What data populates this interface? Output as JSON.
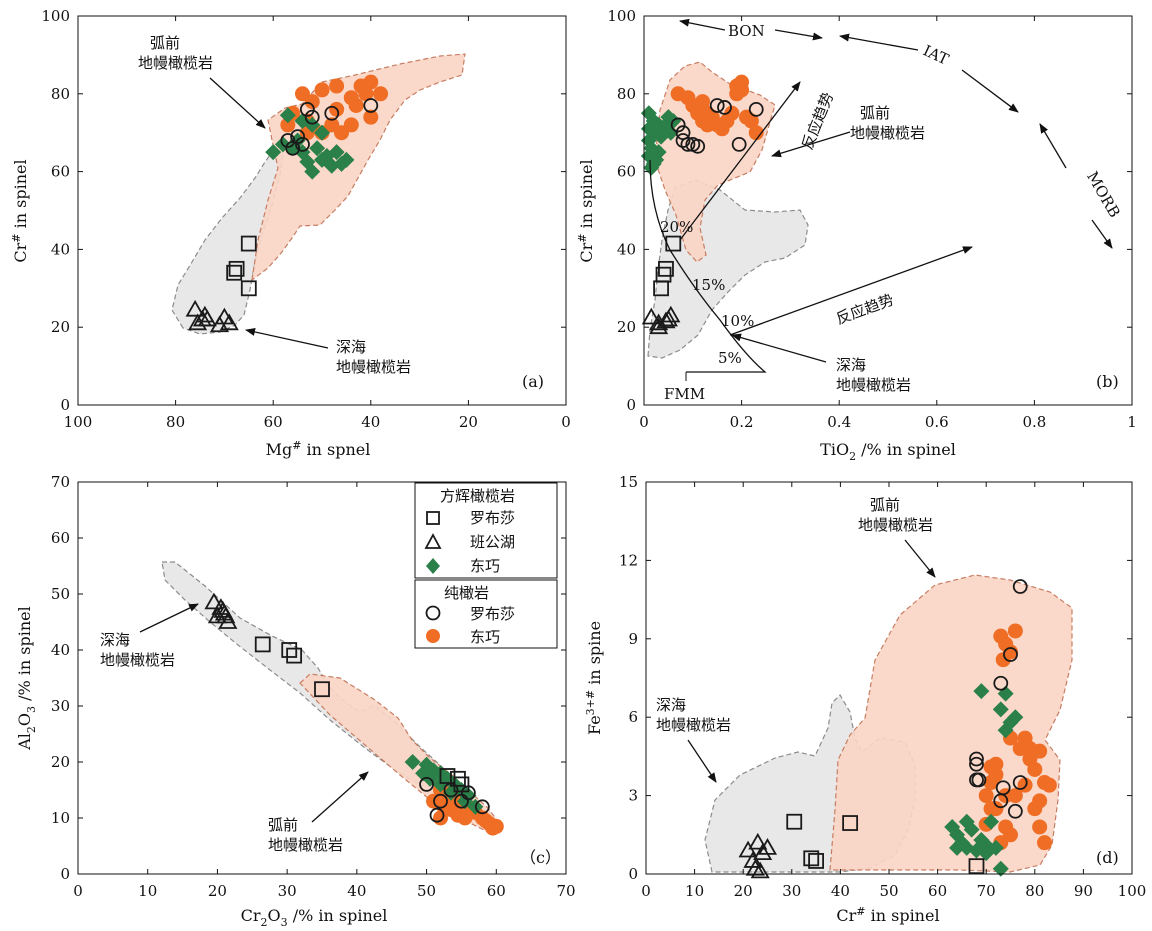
{
  "colors": {
    "open_marker": "#1a1a1a",
    "green": "#2a8048",
    "orange": "#ef6d24",
    "forearc_fill": "#f9d5c5",
    "forearc_stroke": "#c87d62",
    "abyssal_fill": "#e6e6e6",
    "abyssal_stroke": "#8c8c8c"
  },
  "legend": {
    "group1_title": "方辉橄榄岩",
    "group1_items": [
      "罗布莎",
      "班公湖",
      "东巧"
    ],
    "group2_title": "纯橄岩",
    "group2_items": [
      "罗布莎",
      "东巧"
    ]
  },
  "chart_data": [
    {
      "panel": "(a)",
      "type": "scatter",
      "xlabel_main": "Mg",
      "xlabel_sup": "#",
      "xlabel_rest": " in spnel",
      "ylabel_main": "Cr",
      "ylabel_sup": "#",
      "ylabel_rest": " in spinel",
      "xlim": [
        100,
        0
      ],
      "ylim": [
        0,
        100
      ],
      "xticks": [
        100,
        80,
        60,
        40,
        20,
        0
      ],
      "yticks": [
        0,
        20,
        40,
        60,
        80,
        100
      ],
      "annotations": {
        "forearc_line1": "弧前",
        "forearc_line2": "地幔橄榄岩",
        "abyssal_line1": "深海",
        "abyssal_line2": "地幔橄榄岩"
      },
      "series": {
        "harz_luobusha": [
          [
            65,
            41.5
          ],
          [
            67.5,
            35
          ],
          [
            68,
            34
          ],
          [
            65,
            30
          ]
        ],
        "harz_bangonghu": [
          [
            76,
            24.5
          ],
          [
            75.5,
            21
          ],
          [
            74,
            23
          ],
          [
            73.5,
            22
          ],
          [
            70,
            22.5
          ],
          [
            69,
            21
          ],
          [
            71,
            20.5
          ],
          [
            74.5,
            22
          ]
        ],
        "harz_dongqiao": [
          [
            57,
            74.5
          ],
          [
            54,
            73
          ],
          [
            52,
            72
          ],
          [
            50,
            70
          ],
          [
            55,
            68
          ],
          [
            51,
            66
          ],
          [
            49,
            64
          ],
          [
            47,
            65
          ],
          [
            45,
            63
          ],
          [
            53,
            62.5
          ],
          [
            50,
            63
          ],
          [
            56,
            66
          ],
          [
            58,
            67
          ],
          [
            48,
            61.5
          ],
          [
            46,
            62
          ],
          [
            54,
            65
          ],
          [
            60,
            65
          ],
          [
            52,
            60
          ]
        ],
        "dun_luobusha": [
          [
            57,
            68
          ],
          [
            56,
            66
          ],
          [
            54,
            67
          ],
          [
            52,
            74
          ],
          [
            48,
            75
          ],
          [
            53,
            76
          ],
          [
            40,
            77
          ],
          [
            55,
            69
          ]
        ],
        "dun_dongqiao": [
          [
            56,
            75
          ],
          [
            53,
            73
          ],
          [
            50,
            70
          ],
          [
            48,
            72
          ],
          [
            47,
            76
          ],
          [
            44,
            79
          ],
          [
            42,
            82
          ],
          [
            40,
            83
          ],
          [
            38,
            80
          ],
          [
            40,
            74
          ],
          [
            44,
            72
          ],
          [
            46,
            70
          ],
          [
            52,
            78
          ],
          [
            54,
            80
          ],
          [
            47,
            82
          ],
          [
            50,
            81
          ],
          [
            57,
            72
          ],
          [
            53,
            70
          ],
          [
            41,
            80
          ],
          [
            43,
            77
          ]
        ]
      }
    },
    {
      "panel": "(b)",
      "type": "scatter",
      "xlabel_main": "TiO",
      "xlabel_sub": "2",
      "xlabel_rest": " /%  in spinel",
      "ylabel_main": "Cr",
      "ylabel_sup": "#",
      "ylabel_rest": " in spinel",
      "xlim": [
        0,
        1
      ],
      "ylim": [
        0,
        100
      ],
      "xticks": [
        0,
        0.2,
        0.4,
        0.6,
        0.8,
        1
      ],
      "yticks": [
        0,
        20,
        40,
        60,
        80,
        100
      ],
      "annotations": {
        "bon": "BON",
        "iat": "IAT",
        "morb": "MORB",
        "fmm": "FMM",
        "trend1": "反应趋势",
        "trend2": "反应趋势",
        "forearc_line1": "弧前",
        "forearc_line2": "地幔橄榄岩",
        "abyssal_line1": "深海",
        "abyssal_line2": "地幔橄榄岩",
        "melt20": "20%",
        "melt15": "15%",
        "melt10": "10%",
        "melt5": "5%"
      },
      "series": {
        "harz_luobusha": [
          [
            0.06,
            41.5
          ],
          [
            0.045,
            35
          ],
          [
            0.04,
            33.5
          ],
          [
            0.035,
            30
          ]
        ],
        "harz_bangonghu": [
          [
            0.015,
            22.5
          ],
          [
            0.03,
            21
          ],
          [
            0.03,
            20
          ],
          [
            0.05,
            22
          ],
          [
            0.055,
            23
          ],
          [
            0.045,
            21.5
          ]
        ],
        "harz_dongqiao": [
          [
            0.01,
            75
          ],
          [
            0.02,
            73
          ],
          [
            0.03,
            72
          ],
          [
            0.02,
            70
          ],
          [
            0.01,
            68
          ],
          [
            0.015,
            66
          ],
          [
            0.01,
            64
          ],
          [
            0.02,
            62
          ],
          [
            0.03,
            65
          ],
          [
            0.025,
            63
          ],
          [
            0.04,
            71
          ],
          [
            0.05,
            74
          ],
          [
            0.06,
            73
          ],
          [
            0.01,
            71
          ],
          [
            0.035,
            69
          ],
          [
            0.015,
            61
          ],
          [
            0.045,
            72
          ],
          [
            0.055,
            70
          ]
        ],
        "dun_luobusha": [
          [
            0.07,
            72
          ],
          [
            0.08,
            70
          ],
          [
            0.09,
            67
          ],
          [
            0.1,
            67
          ],
          [
            0.11,
            66.5
          ],
          [
            0.15,
            77
          ],
          [
            0.165,
            76.5
          ],
          [
            0.23,
            76
          ],
          [
            0.195,
            67
          ],
          [
            0.08,
            68
          ]
        ],
        "dun_dongqiao": [
          [
            0.07,
            80
          ],
          [
            0.09,
            79
          ],
          [
            0.1,
            77
          ],
          [
            0.11,
            75
          ],
          [
            0.12,
            73
          ],
          [
            0.13,
            72
          ],
          [
            0.14,
            74
          ],
          [
            0.16,
            71
          ],
          [
            0.18,
            75
          ],
          [
            0.19,
            80
          ],
          [
            0.2,
            83
          ],
          [
            0.19,
            82
          ],
          [
            0.2,
            81
          ],
          [
            0.21,
            74
          ],
          [
            0.22,
            73
          ],
          [
            0.23,
            70
          ],
          [
            0.12,
            78
          ],
          [
            0.15,
            72
          ],
          [
            0.17,
            73
          ],
          [
            0.13,
            75
          ]
        ]
      }
    },
    {
      "panel": "（c）",
      "type": "scatter",
      "xlabel_main": "Cr",
      "xlabel_sub": "2",
      "xlabel_mid": "O",
      "xlabel_sub2": "3",
      "xlabel_rest": " /%  in spinel",
      "ylabel_main": "Al",
      "ylabel_sub": "2",
      "ylabel_mid": "O",
      "ylabel_sub2": "3",
      "ylabel_rest": " /%  in spinel",
      "xlim": [
        0,
        70
      ],
      "ylim": [
        0,
        70
      ],
      "xticks": [
        0,
        10,
        20,
        30,
        40,
        50,
        60,
        70
      ],
      "yticks": [
        0,
        10,
        20,
        30,
        40,
        50,
        60,
        70
      ],
      "annotations": {
        "forearc_line1": "弧前",
        "forearc_line2": "地幔橄榄岩",
        "abyssal_line1": "深海",
        "abyssal_line2": "地幔橄榄岩"
      },
      "series": {
        "harz_luobusha": [
          [
            26.5,
            41
          ],
          [
            30.3,
            40
          ],
          [
            31,
            39
          ],
          [
            35,
            33
          ],
          [
            53,
            17.5
          ],
          [
            54.5,
            17
          ],
          [
            55,
            16
          ]
        ],
        "harz_bangonghu": [
          [
            19.5,
            48.5
          ],
          [
            20.5,
            47.5
          ],
          [
            21,
            46.5
          ],
          [
            20,
            46
          ],
          [
            21.5,
            45
          ],
          [
            20.8,
            47
          ],
          [
            21.2,
            46
          ]
        ],
        "harz_dongqiao": [
          [
            48,
            20
          ],
          [
            50,
            19.5
          ],
          [
            51,
            18.5
          ],
          [
            52,
            18
          ],
          [
            49.5,
            18
          ],
          [
            53,
            17
          ],
          [
            54,
            16
          ],
          [
            55,
            15
          ],
          [
            56,
            14
          ],
          [
            52,
            16
          ],
          [
            50.5,
            17
          ],
          [
            53.5,
            14.5
          ],
          [
            55.5,
            13
          ],
          [
            57,
            12
          ]
        ],
        "dun_luobusha": [
          [
            50,
            16
          ],
          [
            51.5,
            10.5
          ],
          [
            52,
            13
          ],
          [
            53.5,
            15
          ],
          [
            55,
            13
          ],
          [
            58,
            12
          ],
          [
            56,
            14.5
          ]
        ],
        "dun_dongqiao": [
          [
            52,
            15
          ],
          [
            53,
            14
          ],
          [
            54,
            13
          ],
          [
            55,
            12.5
          ],
          [
            56,
            12
          ],
          [
            57,
            11
          ],
          [
            58,
            10
          ],
          [
            59,
            9
          ],
          [
            60,
            8.5
          ],
          [
            52.5,
            12
          ],
          [
            53.5,
            11.5
          ],
          [
            54.5,
            10.5
          ],
          [
            55.5,
            10
          ],
          [
            52,
            10
          ],
          [
            51,
            13
          ],
          [
            53,
            13
          ],
          [
            54,
            15
          ],
          [
            56.5,
            11.5
          ],
          [
            58.5,
            9.5
          ],
          [
            59.5,
            8.2
          ]
        ]
      }
    },
    {
      "panel": "(d)",
      "type": "scatter",
      "xlabel_main": "Cr",
      "xlabel_sup": "#",
      "xlabel_rest": " in spinel",
      "ylabel_main": "Fe",
      "ylabel_sup": "3+#",
      "ylabel_rest": " in spine",
      "xlim": [
        0,
        100
      ],
      "ylim": [
        0,
        15
      ],
      "xticks": [
        0,
        10,
        20,
        30,
        40,
        50,
        60,
        70,
        80,
        90,
        100
      ],
      "yticks": [
        0,
        3,
        6,
        9,
        12,
        15
      ],
      "annotations": {
        "forearc_line1": "弧前",
        "forearc_line2": "地幔橄榄岩",
        "abyssal_line1": "深海",
        "abyssal_line2": "地幔橄榄岩"
      },
      "series": {
        "harz_luobusha": [
          [
            30.5,
            2
          ],
          [
            42,
            1.95
          ],
          [
            34,
            0.6
          ],
          [
            35,
            0.5
          ],
          [
            68,
            0.3
          ]
        ],
        "harz_bangonghu": [
          [
            21,
            0.9
          ],
          [
            22,
            0.5
          ],
          [
            23,
            1.2
          ],
          [
            24,
            0.8
          ],
          [
            25,
            1.0
          ],
          [
            22.5,
            0.2
          ],
          [
            23.5,
            0.1
          ]
        ],
        "harz_dongqiao": [
          [
            63,
            1.8
          ],
          [
            64,
            1.5
          ],
          [
            65,
            1.2
          ],
          [
            66,
            2.0
          ],
          [
            67,
            1.7
          ],
          [
            68,
            0.9
          ],
          [
            69,
            1.3
          ],
          [
            70,
            1.1
          ],
          [
            71,
            2.0
          ],
          [
            72,
            1.0
          ],
          [
            73,
            6.3
          ],
          [
            74,
            6.9
          ],
          [
            75,
            5.8
          ],
          [
            74,
            5.5
          ],
          [
            73,
            0.2
          ],
          [
            70,
            0.8
          ],
          [
            69,
            7.0
          ],
          [
            76,
            6.0
          ],
          [
            64,
            1.0
          ],
          [
            66,
            1.0
          ]
        ],
        "dun_luobusha": [
          [
            77,
            11
          ],
          [
            68,
            3.6
          ],
          [
            68,
            4.4
          ],
          [
            68,
            4.2
          ],
          [
            73,
            7.3
          ],
          [
            73.5,
            3.3
          ],
          [
            77,
            3.5
          ],
          [
            76,
            2.4
          ],
          [
            75,
            8.4
          ],
          [
            68.5,
            3.6
          ],
          [
            73,
            2.8
          ]
        ],
        "dun_dongqiao": [
          [
            73,
            9.1
          ],
          [
            74,
            8.8
          ],
          [
            75,
            8.5
          ],
          [
            76,
            9.3
          ],
          [
            73.5,
            8.2
          ],
          [
            72,
            4.2
          ],
          [
            71,
            3.5
          ],
          [
            70,
            3.0
          ],
          [
            72,
            2.5
          ],
          [
            74,
            1.8
          ],
          [
            75,
            1.5
          ],
          [
            76,
            3.0
          ],
          [
            77,
            4.8
          ],
          [
            78,
            5.2
          ],
          [
            79,
            4.4
          ],
          [
            80,
            4.0
          ],
          [
            81,
            4.7
          ],
          [
            82,
            3.5
          ],
          [
            83,
            3.4
          ],
          [
            80,
            2.5
          ],
          [
            81,
            1.8
          ],
          [
            82,
            1.2
          ],
          [
            81,
            2.8
          ],
          [
            79,
            4.8
          ],
          [
            78,
            3.4
          ],
          [
            71,
            2.5
          ],
          [
            70,
            1.9
          ],
          [
            73,
            1.2
          ],
          [
            72,
            3.8
          ],
          [
            74,
            3.0
          ],
          [
            75,
            5.2
          ],
          [
            71,
            4.1
          ]
        ]
      }
    }
  ]
}
